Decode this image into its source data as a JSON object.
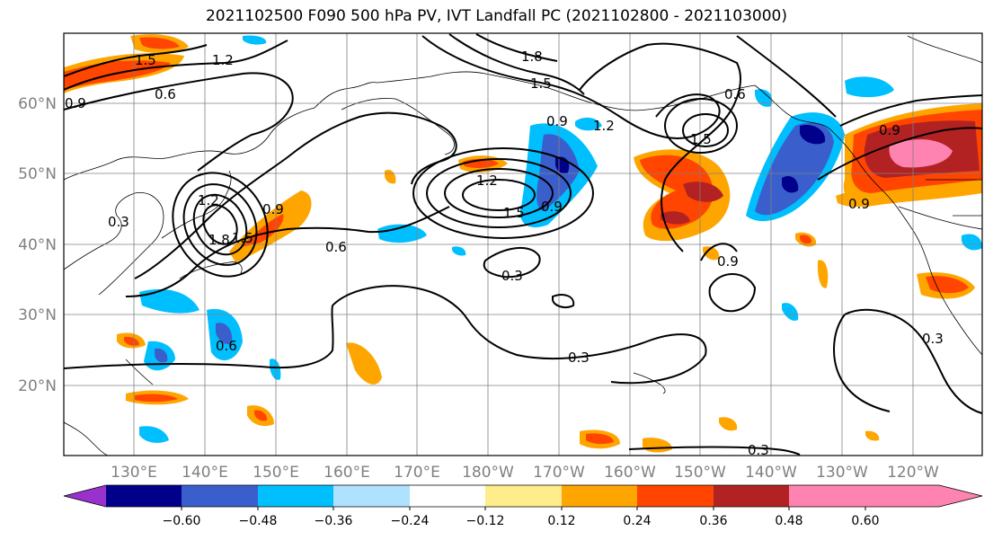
{
  "title": "2021102500 F090 500 hPa PV, IVT Landfall PC (2021102800 - 2021103000)",
  "lat_labels": [
    "60°N",
    "50°N",
    "40°N",
    "30°N",
    "20°N"
  ],
  "lon_labels": [
    "130°E",
    "140°E",
    "150°E",
    "160°E",
    "170°E",
    "180°W",
    "170°W",
    "160°W",
    "150°W",
    "140°W",
    "130°W",
    "120°W"
  ],
  "colorbar": {
    "colors": [
      "#9932cc",
      "#00008b",
      "#3a5fcd",
      "#00bfff",
      "#b0e2ff",
      "#ffffff",
      "#ffec8b",
      "#ffa500",
      "#ff4500",
      "#b22222",
      "#ff83b0"
    ],
    "tick_labels": [
      "−0.60",
      "−0.48",
      "−0.36",
      "−0.24",
      "−0.12",
      "0.12",
      "0.24",
      "0.36",
      "0.48",
      "0.60"
    ]
  },
  "contour_labels": [
    "1.5",
    "1.2",
    "0.9",
    "0.6",
    "0.9",
    "1.8",
    "1.5",
    "1.2",
    "0.9",
    "0.6",
    "1.5",
    "0.9",
    "1.2",
    "0.9",
    "0.6",
    "0.3",
    "0.3",
    "0.3",
    "0.3",
    "0.6",
    "0.9",
    "1.2",
    "1.5",
    "1.8",
    "1.5",
    "0.9",
    "0.3"
  ]
}
